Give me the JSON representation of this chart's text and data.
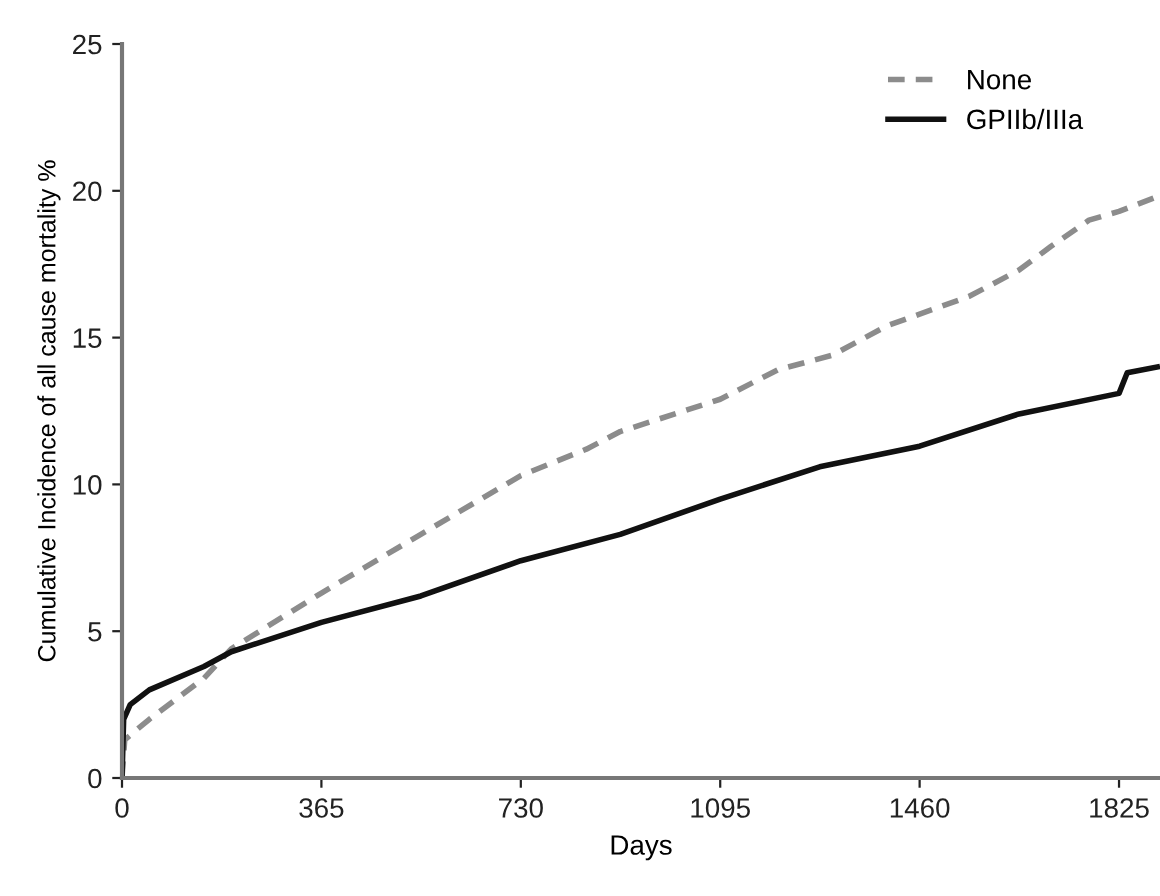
{
  "chart_data": {
    "type": "line",
    "xlabel": "Days",
    "ylabel": "Cumulative Incidence of all cause mortality %",
    "xlim": [
      0,
      1900
    ],
    "ylim": [
      0,
      25
    ],
    "xticks": [
      0,
      365,
      730,
      1095,
      1460,
      1825
    ],
    "yticks": [
      0,
      5,
      10,
      15,
      20,
      25
    ],
    "grid": false,
    "legend": "top right",
    "marker": "none",
    "series": [
      {
        "name": "None",
        "color": "#8c8c8c",
        "line_style": "dashed",
        "x": [
          0,
          5,
          50,
          150,
          200,
          365,
          547,
          730,
          850,
          912,
          1095,
          1200,
          1300,
          1400,
          1460,
          1550,
          1642,
          1700,
          1770,
          1825,
          1895
        ],
        "values": [
          0,
          1.3,
          2.0,
          3.4,
          4.4,
          6.3,
          8.3,
          10.3,
          11.2,
          11.8,
          12.9,
          13.9,
          14.4,
          15.4,
          15.8,
          16.4,
          17.3,
          18.1,
          19.0,
          19.3,
          19.8
        ]
      },
      {
        "name": "GPIIb/IIIa",
        "color": "#111111",
        "line_style": "solid",
        "x": [
          0,
          3,
          15,
          50,
          150,
          200,
          365,
          547,
          730,
          912,
          1095,
          1277,
          1460,
          1642,
          1825,
          1840,
          1895
        ],
        "values": [
          0,
          2.0,
          2.5,
          3.0,
          3.8,
          4.3,
          5.3,
          6.2,
          7.4,
          8.3,
          9.5,
          10.6,
          11.3,
          12.4,
          13.1,
          13.8,
          14.0
        ]
      }
    ]
  }
}
